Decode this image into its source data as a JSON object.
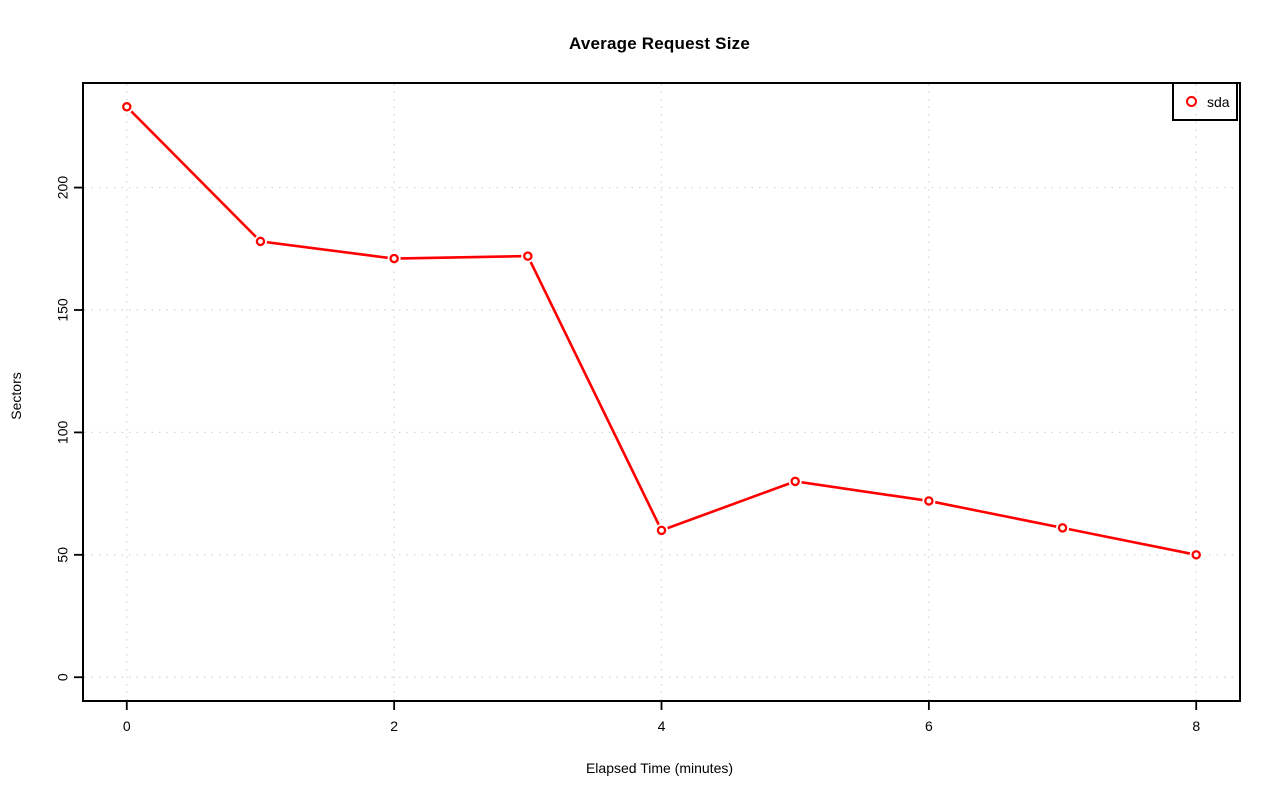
{
  "chart_data": {
    "type": "line",
    "title": "Average Request Size",
    "xlabel": "Elapsed Time (minutes)",
    "ylabel": "Sectors",
    "x": [
      0,
      1,
      2,
      3,
      4,
      5,
      6,
      7,
      8
    ],
    "series": [
      {
        "name": "sda",
        "color": "#ff0000",
        "marker": "open-circle",
        "line_style": "solid",
        "values": [
          233,
          178,
          171,
          172,
          60,
          80,
          72,
          61,
          50
        ]
      }
    ],
    "xticks": [
      0,
      2,
      4,
      6,
      8
    ],
    "xtick_labels": [
      "0",
      "2",
      "4",
      "6",
      "8"
    ],
    "yticks": [
      0,
      50,
      100,
      150,
      200
    ],
    "ytick_labels": [
      "0",
      "50",
      "100",
      "150",
      "200"
    ],
    "xlim": [
      -0.32,
      8.32
    ],
    "ylim": [
      -9.3,
      242.3
    ],
    "grid": true,
    "grid_style": "dotted",
    "grid_color": "#d4d4d4",
    "axis_color": "#000000",
    "background_color": "#ffffff",
    "legend_position": "top-right",
    "legend_entries": [
      "sda"
    ]
  }
}
